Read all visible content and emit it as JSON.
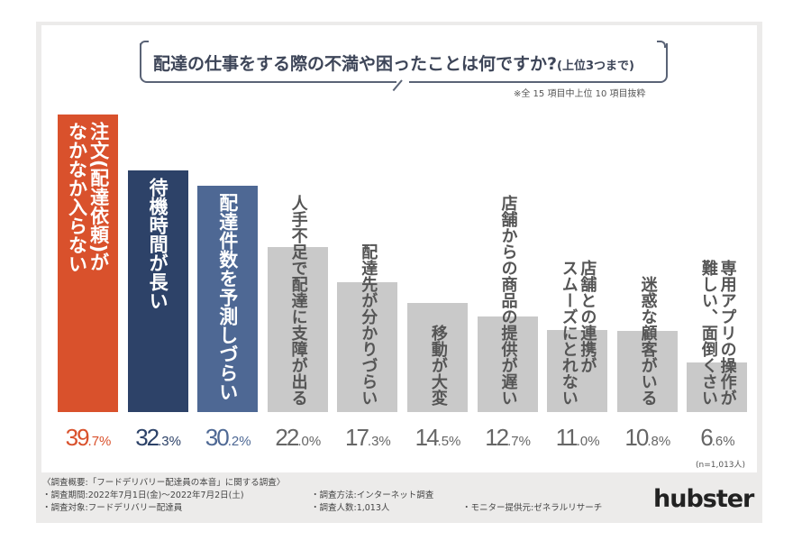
{
  "chart_data": {
    "type": "bar",
    "title": "配達の仕事をする際の不満や困ったことは何ですか?",
    "title_note": "(上位3つまで)",
    "subtitle": "※全 15 項目中上位 10 項目抜粋",
    "categories": [
      "注文(配達依頼)が\nなかなか入らない",
      "待機時間が長い",
      "配達件数を予測しづらい",
      "人手不足で配達に支障が出る",
      "配達先が分かりづらい",
      "移動が大変",
      "店舗からの商品の提供が遅い",
      "店舗との連携が\nスムーズにとれない",
      "迷惑な顧客がいる",
      "専用アプリの操作が\n難しい、面倒くさい"
    ],
    "values": [
      39.7,
      32.3,
      30.2,
      22.0,
      17.3,
      14.5,
      12.7,
      11.0,
      10.8,
      6.6
    ],
    "value_labels": [
      [
        "39",
        ".7%"
      ],
      [
        "32",
        ".3%"
      ],
      [
        "30",
        ".2%"
      ],
      [
        "22",
        ".0%"
      ],
      [
        "17",
        ".3%"
      ],
      [
        "14",
        ".5%"
      ],
      [
        "12",
        ".7%"
      ],
      [
        "11",
        ".0%"
      ],
      [
        "10",
        ".8%"
      ],
      [
        "6",
        ".6%"
      ]
    ],
    "colors": [
      "#d9512c",
      "#2d4268",
      "#4e6894",
      "#c9c9c9",
      "#c9c9c9",
      "#c9c9c9",
      "#c9c9c9",
      "#c9c9c9",
      "#c9c9c9",
      "#c9c9c9"
    ],
    "label_colors": [
      "#ffffff",
      "#ffffff",
      "#ffffff",
      "#555555",
      "#555555",
      "#555555",
      "#555555",
      "#555555",
      "#555555",
      "#555555"
    ],
    "value_colors": [
      "#d9512c",
      "#2d4268",
      "#4e6894",
      "#666666",
      "#666666",
      "#666666",
      "#666666",
      "#666666",
      "#666666",
      "#666666"
    ],
    "ylim": [
      0,
      40
    ],
    "grid": false,
    "sample_note": "(n=1,013人)"
  },
  "footer": {
    "heading": "〈調査概要:「フードデリバリー配達員の本音」に関する調査〉",
    "period": "・調査期間:2022年7月1日(金)〜2022年7月2日(土)",
    "method": "・調査方法:インターネット調査",
    "target": "・調査対象:フードデリバリー配達員",
    "count": "・調査人数:1,013人",
    "provider": "・モニター提供元:ゼネラルリサーチ"
  },
  "logo": "hubster"
}
